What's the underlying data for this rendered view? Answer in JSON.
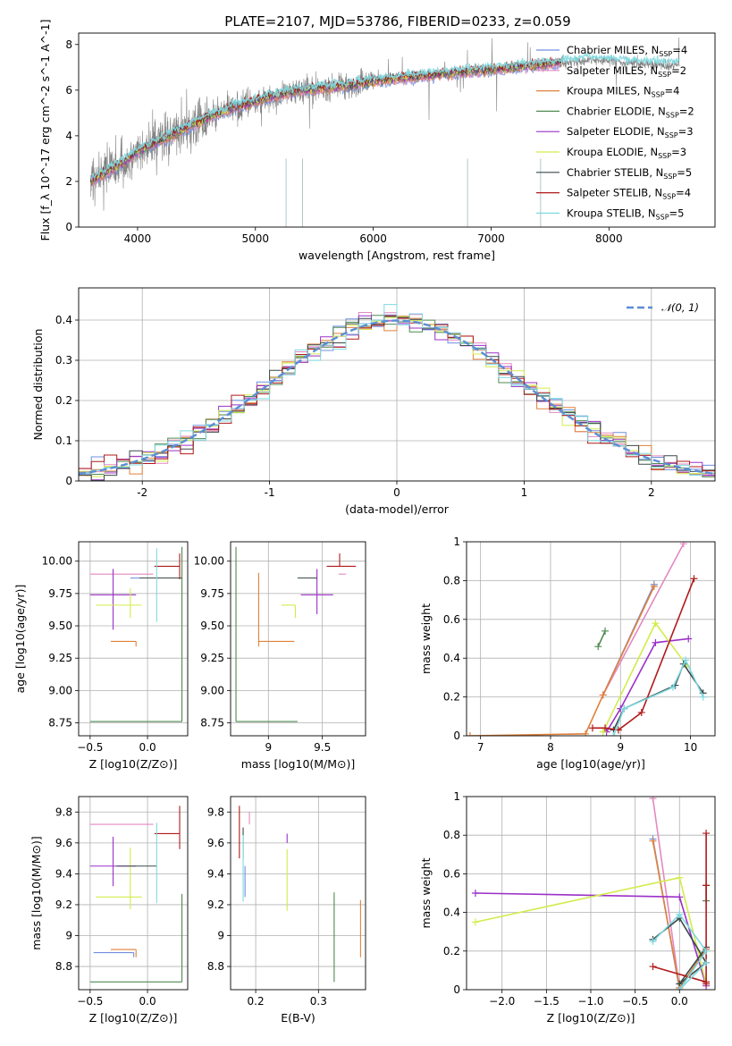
{
  "figure": {
    "title": "PLATE=2107, MJD=53786, FIBERID=0233, z=0.059"
  },
  "series": [
    {
      "name": "Chabrier MILES",
      "nssp": "4",
      "color": "#6f8fe0"
    },
    {
      "name": "Salpeter MILES",
      "nssp": "2",
      "color": "#e389c0"
    },
    {
      "name": "Kroupa MILES",
      "nssp": "4",
      "color": "#e0813a"
    },
    {
      "name": "Chabrier ELODIE",
      "nssp": "2",
      "color": "#4f8a52"
    },
    {
      "name": "Salpeter ELODIE",
      "nssp": "3",
      "color": "#9b30c8"
    },
    {
      "name": "Kroupa ELODIE",
      "nssp": "3",
      "color": "#d2ec4c"
    },
    {
      "name": "Chabrier STELIB",
      "nssp": "5",
      "color": "#3a4a4a"
    },
    {
      "name": "Salpeter STELIB",
      "nssp": "4",
      "color": "#b01a1a"
    },
    {
      "name": "Kroupa STELIB",
      "nssp": "5",
      "color": "#7fd9e0"
    }
  ],
  "chart_data": [
    {
      "id": "spectrum",
      "type": "line",
      "title": "PLATE=2107, MJD=53786, FIBERID=0233, z=0.059",
      "xlabel": "wavelength [Angstrom, rest frame]",
      "ylabel": "Flux [f_λ 10^-17 erg cm^-2 s^-1 A^-1]",
      "xlim": [
        3500,
        8900
      ],
      "ylim": [
        0,
        8.5
      ],
      "xticks": [
        4000,
        5000,
        6000,
        7000,
        8000
      ],
      "yticks": [
        0,
        2,
        4,
        6,
        8
      ],
      "grid": false,
      "legend_position": "top-right",
      "data_color": "#808080",
      "model_color": "#7fd9e0",
      "continuum": {
        "x": [
          3600,
          3700,
          3800,
          3900,
          4000,
          4200,
          4400,
          4600,
          4800,
          5000,
          5200,
          5400,
          5600,
          5800,
          6000,
          6200,
          6400,
          6600,
          6800,
          7000,
          7200,
          7400,
          7600,
          7800,
          8000,
          8200,
          8400,
          8600
        ],
        "y": [
          2.0,
          2.3,
          2.6,
          2.9,
          3.3,
          3.8,
          4.3,
          4.8,
          5.2,
          5.5,
          5.8,
          6.0,
          6.1,
          6.2,
          6.4,
          6.5,
          6.6,
          6.7,
          6.8,
          6.9,
          7.0,
          7.1,
          7.2,
          7.3,
          7.3,
          7.2,
          7.1,
          7.1
        ]
      }
    },
    {
      "id": "residuals",
      "type": "area",
      "xlabel": "(data-model)/error",
      "ylabel": "Normed distribution",
      "xlim": [
        -2.5,
        2.5
      ],
      "ylim": [
        0,
        0.48
      ],
      "xticks": [
        -2,
        -1,
        0,
        1,
        2
      ],
      "yticks": [
        0.0,
        0.1,
        0.2,
        0.3,
        0.4
      ],
      "grid": true,
      "legend_position": "top-right",
      "reference_curve": {
        "name": "N(0,1)",
        "color": "#5b8ed6"
      },
      "bin_width": 0.1
    },
    {
      "id": "age-vs-Z",
      "type": "scatter",
      "xlabel": "Z [log10(Z/Z⊙)]",
      "ylabel": "age [log10(age/yr)]",
      "xlim": [
        -0.6,
        0.35
      ],
      "ylim": [
        8.65,
        10.15
      ],
      "xticks": [
        -0.5,
        0.0
      ],
      "xtick_labels": [
        "−0.5",
        "0.0"
      ],
      "yticks": [
        8.75,
        9.0,
        9.25,
        9.5,
        9.75,
        10.0
      ],
      "ytick_labels": [
        "8.75",
        "9.00",
        "9.25",
        "9.50",
        "9.75",
        "10.00"
      ],
      "grid": true,
      "errorbars": [
        {
          "series": 0,
          "x": 0.08,
          "xerr": [
            0.23,
            0.0
          ],
          "y": 9.87,
          "yerr": [
            0.0,
            0.0
          ]
        },
        {
          "series": 1,
          "x": 0.05,
          "xerr": [
            0.55,
            0.0
          ],
          "y": 9.9,
          "yerr": [
            0.0,
            0.0
          ]
        },
        {
          "series": 2,
          "x": -0.1,
          "xerr": [
            0.22,
            0.0
          ],
          "y": 9.38,
          "yerr": [
            0.04,
            0.0
          ]
        },
        {
          "series": 3,
          "x": 0.3,
          "xerr": [
            0.8,
            0.0
          ],
          "y": 8.76,
          "yerr": [
            0.0,
            1.35
          ]
        },
        {
          "series": 4,
          "x": -0.3,
          "xerr": [
            0.2,
            0.2
          ],
          "y": 9.74,
          "yerr": [
            0.27,
            0.2
          ]
        },
        {
          "series": 5,
          "x": -0.15,
          "xerr": [
            0.3,
            0.1
          ],
          "y": 9.66,
          "yerr": [
            0.1,
            0.13
          ]
        },
        {
          "series": 6,
          "x": 0.08,
          "xerr": [
            0.15,
            0.22
          ],
          "y": 9.87,
          "yerr": [
            0.0,
            0.0
          ]
        },
        {
          "series": 7,
          "x": 0.28,
          "xerr": [
            0.22,
            0.0
          ],
          "y": 9.96,
          "yerr": [
            0.1,
            0.1
          ]
        },
        {
          "series": 8,
          "x": 0.08,
          "xerr": [
            0.0,
            0.0
          ],
          "y": 9.85,
          "yerr": [
            0.32,
            0.25
          ]
        }
      ]
    },
    {
      "id": "age-vs-mass",
      "type": "scatter",
      "xlabel": "mass [log10(M/M⊙)]",
      "xlim": [
        8.65,
        9.9
      ],
      "ylim": [
        8.65,
        10.15
      ],
      "xticks": [
        9.0,
        9.5
      ],
      "yticks": [
        8.75,
        9.0,
        9.25,
        9.5,
        9.75,
        10.0
      ],
      "ytick_labels": [
        "8.75",
        "9.00",
        "9.25",
        "9.50",
        "9.75",
        "10.00"
      ],
      "grid": true,
      "errorbars": [
        {
          "series": 0,
          "x": 9.48,
          "xerr": [
            0.0,
            0.0
          ],
          "y": 9.87,
          "yerr": [
            0.0,
            0.0
          ]
        },
        {
          "series": 1,
          "x": 9.72,
          "xerr": [
            0.07,
            0.0
          ],
          "y": 9.9,
          "yerr": [
            0.0,
            0.0
          ]
        },
        {
          "series": 2,
          "x": 8.91,
          "xerr": [
            0.0,
            0.33
          ],
          "y": 9.38,
          "yerr": [
            0.04,
            0.53
          ]
        },
        {
          "series": 3,
          "x": 8.7,
          "xerr": [
            0.0,
            0.57
          ],
          "y": 8.76,
          "yerr": [
            0.0,
            1.35
          ]
        },
        {
          "series": 4,
          "x": 9.45,
          "xerr": [
            0.15,
            0.15
          ],
          "y": 9.74,
          "yerr": [
            0.15,
            0.2
          ]
        },
        {
          "series": 5,
          "x": 9.25,
          "xerr": [
            0.13,
            0.0
          ],
          "y": 9.66,
          "yerr": [
            0.1,
            0.0
          ]
        },
        {
          "series": 6,
          "x": 9.45,
          "xerr": [
            0.18,
            0.0
          ],
          "y": 9.87,
          "yerr": [
            0.0,
            0.0
          ]
        },
        {
          "series": 7,
          "x": 9.66,
          "xerr": [
            0.12,
            0.15
          ],
          "y": 9.96,
          "yerr": [
            0.0,
            0.1
          ]
        },
        {
          "series": 8,
          "x": 9.48,
          "xerr": [
            0.0,
            0.0
          ],
          "y": 9.85,
          "yerr": [
            0.0,
            0.0
          ]
        }
      ]
    },
    {
      "id": "massweight-vs-age",
      "type": "line",
      "xlabel": "age [log10(age/yr)]",
      "ylabel": "mass weight",
      "xlim": [
        6.8,
        10.35
      ],
      "ylim": [
        0,
        1
      ],
      "xticks": [
        7,
        8,
        9,
        10
      ],
      "yticks": [
        0.0,
        0.2,
        0.4,
        0.6,
        0.8,
        1.0
      ],
      "grid": true,
      "lines": [
        {
          "series": 0,
          "x": [
            8.75,
            9.48
          ],
          "y": [
            0.21,
            0.78
          ]
        },
        {
          "series": 1,
          "x": [
            8.75,
            9.9
          ],
          "y": [
            0.21,
            0.99
          ]
        },
        {
          "series": 2,
          "x": [
            6.85,
            8.5,
            8.75,
            9.48
          ],
          "y": [
            0.0,
            0.01,
            0.21,
            0.77
          ]
        },
        {
          "series": 3,
          "x": [
            8.68,
            8.78
          ],
          "y": [
            0.46,
            0.54
          ]
        },
        {
          "series": 4,
          "x": [
            8.8,
            9.0,
            9.5,
            9.97
          ],
          "y": [
            0.02,
            0.14,
            0.48,
            0.5
          ]
        },
        {
          "series": 5,
          "x": [
            8.75,
            9.5,
            9.95
          ],
          "y": [
            0.02,
            0.58,
            0.36
          ]
        },
        {
          "series": 6,
          "x": [
            8.9,
            9.05,
            9.78,
            9.9,
            10.18
          ],
          "y": [
            0.03,
            0.14,
            0.26,
            0.37,
            0.22
          ]
        },
        {
          "series": 7,
          "x": [
            8.6,
            8.78,
            8.97,
            9.3,
            10.05
          ],
          "y": [
            0.04,
            0.04,
            0.03,
            0.12,
            0.81
          ]
        },
        {
          "series": 8,
          "x": [
            8.9,
            9.05,
            9.75,
            9.93,
            10.18
          ],
          "y": [
            0.0,
            0.14,
            0.25,
            0.39,
            0.2
          ]
        }
      ]
    },
    {
      "id": "mass-vs-Z",
      "type": "scatter",
      "xlabel": "Z [log10(Z/Z⊙)]",
      "ylabel": "mass [log10(M/M⊙)]",
      "xlim": [
        -0.6,
        0.35
      ],
      "ylim": [
        8.65,
        9.9
      ],
      "xticks": [
        -0.5,
        0.0
      ],
      "xtick_labels": [
        "−0.5",
        "0.0"
      ],
      "yticks": [
        8.8,
        9.0,
        9.2,
        9.4,
        9.6,
        9.8
      ],
      "grid": true,
      "errorbars": [
        {
          "series": 0,
          "x": -0.12,
          "xerr": [
            0.35,
            0.0
          ],
          "y": 8.89,
          "yerr": [
            0.03,
            0.0
          ]
        },
        {
          "series": 1,
          "x": 0.05,
          "xerr": [
            0.55,
            0.0
          ],
          "y": 9.72,
          "yerr": [
            0.0,
            0.0
          ]
        },
        {
          "series": 2,
          "x": -0.1,
          "xerr": [
            0.22,
            0.0
          ],
          "y": 8.91,
          "yerr": [
            0.05,
            0.0
          ]
        },
        {
          "series": 3,
          "x": 0.3,
          "xerr": [
            0.8,
            0.0
          ],
          "y": 8.7,
          "yerr": [
            0.0,
            0.57
          ]
        },
        {
          "series": 4,
          "x": -0.3,
          "xerr": [
            0.2,
            0.2
          ],
          "y": 9.45,
          "yerr": [
            0.13,
            0.19
          ]
        },
        {
          "series": 5,
          "x": -0.15,
          "xerr": [
            0.3,
            0.1
          ],
          "y": 9.25,
          "yerr": [
            0.08,
            0.32
          ]
        },
        {
          "series": 6,
          "x": 0.08,
          "xerr": [
            0.35,
            0.0
          ],
          "y": 9.45,
          "yerr": [
            0.0,
            0.0
          ]
        },
        {
          "series": 7,
          "x": 0.28,
          "xerr": [
            0.22,
            0.0
          ],
          "y": 9.66,
          "yerr": [
            0.1,
            0.18
          ]
        },
        {
          "series": 8,
          "x": 0.08,
          "xerr": [
            0.0,
            0.0
          ],
          "y": 9.48,
          "yerr": [
            0.27,
            0.25
          ]
        }
      ]
    },
    {
      "id": "mass-vs-EBV",
      "type": "scatter",
      "xlabel": "E(B-V)",
      "xlim": [
        0.16,
        0.375
      ],
      "ylim": [
        8.65,
        9.9
      ],
      "xticks": [
        0.2,
        0.3
      ],
      "yticks": [
        8.8,
        9.0,
        9.2,
        9.4,
        9.6,
        9.8
      ],
      "grid": true,
      "errorbars": [
        {
          "series": 0,
          "x": 0.183,
          "xerr": [
            0.0,
            0.0
          ],
          "y": 9.45,
          "yerr": [
            0.2,
            0.0
          ]
        },
        {
          "series": 1,
          "x": 0.19,
          "xerr": [
            0.0,
            0.0
          ],
          "y": 9.72,
          "yerr": [
            0.0,
            0.08
          ]
        },
        {
          "series": 2,
          "x": 0.367,
          "xerr": [
            0.0,
            0.0
          ],
          "y": 8.91,
          "yerr": [
            0.05,
            0.32
          ]
        },
        {
          "series": 3,
          "x": 0.325,
          "xerr": [
            0.0,
            0.0
          ],
          "y": 9.0,
          "yerr": [
            0.3,
            0.28
          ]
        },
        {
          "series": 4,
          "x": 0.25,
          "xerr": [
            0.0,
            0.0
          ],
          "y": 9.6,
          "yerr": [
            0.0,
            0.06
          ]
        },
        {
          "series": 5,
          "x": 0.25,
          "xerr": [
            0.0,
            0.0
          ],
          "y": 9.36,
          "yerr": [
            0.2,
            0.2
          ]
        },
        {
          "series": 6,
          "x": 0.18,
          "xerr": [
            0.0,
            0.0
          ],
          "y": 9.5,
          "yerr": [
            0.0,
            0.2
          ]
        },
        {
          "series": 7,
          "x": 0.174,
          "xerr": [
            0.0,
            0.0
          ],
          "y": 9.66,
          "yerr": [
            0.16,
            0.18
          ]
        },
        {
          "series": 8,
          "x": 0.18,
          "xerr": [
            0.0,
            0.0
          ],
          "y": 9.45,
          "yerr": [
            0.23,
            0.2
          ]
        }
      ]
    },
    {
      "id": "massweight-vs-Z",
      "type": "line",
      "xlabel": "Z [log10(Z/Z⊙)]",
      "ylabel": "mass weight",
      "xlim": [
        -2.4,
        0.4
      ],
      "ylim": [
        0,
        1
      ],
      "xticks": [
        -2.0,
        -1.5,
        -1.0,
        -0.5,
        0.0
      ],
      "xtick_labels": [
        "−2.0",
        "−1.5",
        "−1.0",
        "−0.5",
        "0.0"
      ],
      "yticks": [
        0.0,
        0.2,
        0.4,
        0.6,
        0.8,
        1.0
      ],
      "grid": true,
      "lines": [
        {
          "series": 0,
          "x": [
            -0.3,
            0.0,
            0.3
          ],
          "y": [
            0.78,
            0.0,
            0.21
          ]
        },
        {
          "series": 1,
          "x": [
            -0.3,
            0.0
          ],
          "y": [
            0.99,
            0.01
          ]
        },
        {
          "series": 2,
          "x": [
            -0.3,
            0.0,
            0.3
          ],
          "y": [
            0.77,
            0.01,
            0.21
          ]
        },
        {
          "series": 3,
          "x": [
            0.3,
            0.3
          ],
          "y": [
            0.46,
            0.54
          ]
        },
        {
          "series": 4,
          "x": [
            -2.3,
            0.0,
            0.3
          ],
          "y": [
            0.5,
            0.48,
            0.02
          ]
        },
        {
          "series": 5,
          "x": [
            -2.3,
            0.0,
            0.3
          ],
          "y": [
            0.35,
            0.58,
            0.03
          ]
        },
        {
          "series": 6,
          "x": [
            -0.3,
            0.0,
            0.3,
            0.0,
            0.3
          ],
          "y": [
            0.26,
            0.37,
            0.14,
            0.03,
            0.22
          ]
        },
        {
          "series": 7,
          "x": [
            -0.3,
            0.3,
            0.3,
            0.3,
            0.3
          ],
          "y": [
            0.12,
            0.04,
            0.81,
            0.54,
            0.03
          ]
        },
        {
          "series": 8,
          "x": [
            -0.3,
            0.0,
            0.3,
            0.0,
            0.3
          ],
          "y": [
            0.25,
            0.39,
            0.2,
            0.0,
            0.14
          ]
        }
      ]
    }
  ]
}
